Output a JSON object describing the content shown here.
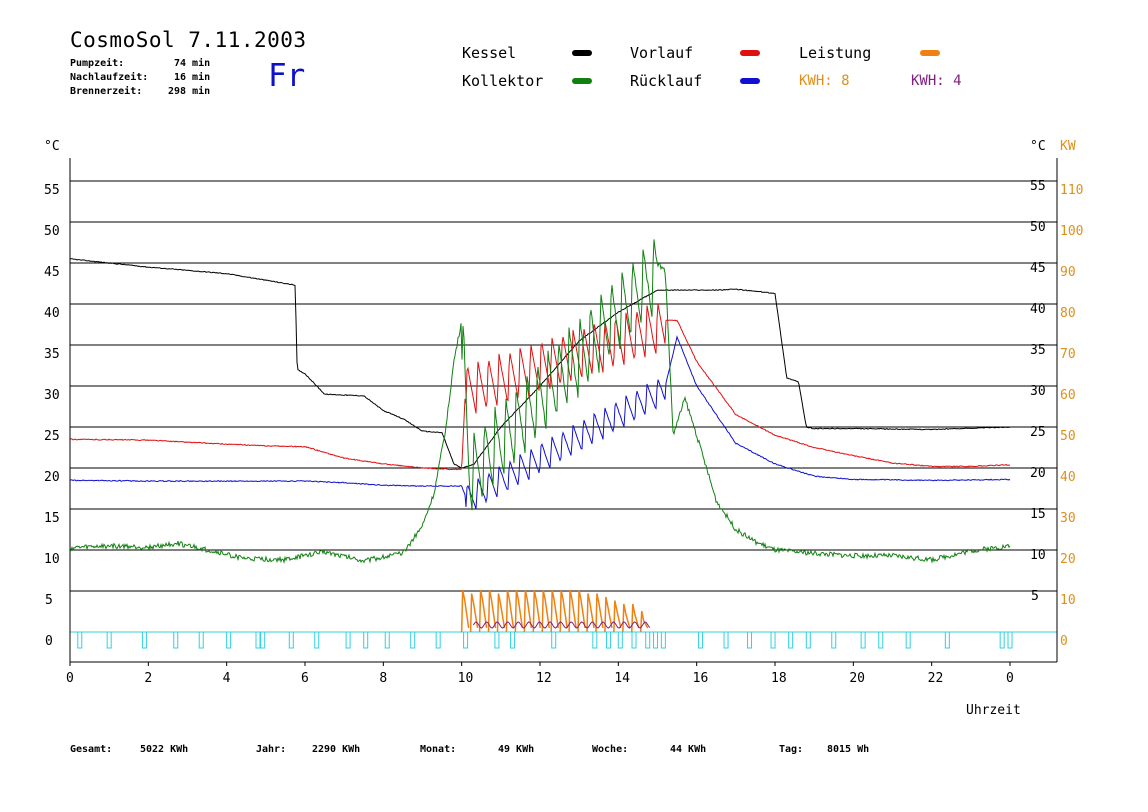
{
  "header": {
    "title": "CosmoSol 7.11.2003",
    "weekday": "Fr",
    "stats": [
      {
        "label": "Pumpzeit:",
        "value": "74 min"
      },
      {
        "label": "Nachlaufzeit:",
        "value": "16 min"
      },
      {
        "label": "Brennerzeit:",
        "value": "298 min"
      }
    ]
  },
  "legend": {
    "items": [
      {
        "label": "Kessel",
        "color": "#000000"
      },
      {
        "label": "Kollektor",
        "color": "#108010"
      },
      {
        "label": "Vorlauf",
        "color": "#e01010"
      },
      {
        "label": "Rücklauf",
        "color": "#1010d0"
      },
      {
        "label": "Leistung",
        "color": "#f08010"
      }
    ],
    "kwh_values": [
      {
        "text": "KWH: 8",
        "color": "#e0901a"
      },
      {
        "text": "KWH: 4",
        "color": "#802080"
      }
    ]
  },
  "footer": {
    "items": [
      {
        "label": "Gesamt:",
        "value": "5022 KWh"
      },
      {
        "label": "Jahr:",
        "value": "2290 KWh"
      },
      {
        "label": "Monat:",
        "value": "49 KWh"
      },
      {
        "label": "Woche:",
        "value": "44 KWh"
      },
      {
        "label": "Tag:",
        "value": "8015 Wh"
      }
    ]
  },
  "chart_data": {
    "type": "line",
    "xlabel": "Uhrzeit",
    "ylabel_left": "°C",
    "ylabel_right_unit": "°C",
    "ylabel_right2": "KW",
    "x_ticks": [
      "0",
      "2",
      "4",
      "6",
      "8",
      "10",
      "12",
      "14",
      "16",
      "18",
      "20",
      "22",
      "0"
    ],
    "y_ticks_left": [
      0,
      5,
      10,
      15,
      20,
      25,
      30,
      35,
      40,
      45,
      50,
      55
    ],
    "y_ticks_right": [
      5,
      10,
      15,
      20,
      25,
      30,
      35,
      40,
      45,
      50,
      55
    ],
    "y_ticks_right2": [
      0,
      10,
      20,
      30,
      40,
      50,
      60,
      70,
      80,
      90,
      100,
      110
    ],
    "xlim": [
      0,
      24
    ],
    "ylim": [
      0,
      55
    ],
    "grid": true,
    "series": [
      {
        "name": "Kessel",
        "color": "#000000",
        "x": [
          0,
          2,
          4,
          5.5,
          5.75,
          5.8,
          6.0,
          6.5,
          7.5,
          8.0,
          8.5,
          9.0,
          9.5,
          9.8,
          10.0,
          10.3,
          11,
          12,
          13,
          14,
          15,
          16,
          16.5,
          17,
          18,
          18.3,
          18.6,
          18.8,
          19,
          20,
          22,
          24
        ],
        "y": [
          45.5,
          44.5,
          43.7,
          42.5,
          42.3,
          32,
          31.5,
          29,
          28.8,
          27,
          26,
          24.5,
          24.3,
          20.5,
          20,
          20.4,
          25,
          30,
          35.5,
          39,
          41.7,
          41.7,
          41.7,
          41.8,
          41.3,
          31,
          30.5,
          25,
          24.8,
          24.8,
          24.7,
          25
        ]
      },
      {
        "name": "Vorlauf",
        "color": "#e01010",
        "x": [
          0,
          2,
          4,
          5,
          6,
          7,
          8,
          9,
          10,
          10.1,
          15.2,
          15.5,
          16,
          17,
          18,
          19,
          20,
          21,
          22,
          23,
          24
        ],
        "y": [
          23.5,
          23.4,
          22.9,
          22.7,
          22.6,
          21.2,
          20.5,
          20,
          19.8,
          30,
          38,
          38,
          33,
          26.5,
          24,
          22.5,
          21.5,
          20.6,
          20.2,
          20.2,
          20.4
        ]
      },
      {
        "name": "Rücklauf",
        "color": "#1010d0",
        "x": [
          0,
          2,
          4,
          6,
          7,
          8,
          9,
          10,
          10.1,
          15.2,
          15.5,
          16,
          17,
          18,
          19,
          20,
          22,
          24
        ],
        "y": [
          18.5,
          18.4,
          18.4,
          18.4,
          18.2,
          17.9,
          17.8,
          17.8,
          16.5,
          30,
          36,
          30,
          23,
          20.5,
          19,
          18.6,
          18.5,
          18.6
        ]
      },
      {
        "name": "Kollektor",
        "color": "#108010",
        "x": [
          0,
          1,
          2,
          2.75,
          3.5,
          4.5,
          5.5,
          6.5,
          7.5,
          8.5,
          9,
          9.3,
          9.6,
          9.8,
          10,
          10.2,
          15.0,
          15.2,
          15.4,
          15.7,
          16,
          16.5,
          17,
          17.5,
          18,
          19,
          20,
          21,
          22,
          23,
          24
        ],
        "y": [
          10.2,
          10.5,
          10.3,
          10.8,
          10,
          8.9,
          8.8,
          9.8,
          8.7,
          9.6,
          13,
          17,
          25,
          33,
          38,
          20,
          45,
          44,
          24,
          28.5,
          24,
          16,
          12.5,
          11,
          10,
          9.6,
          9.3,
          9.3,
          8.8,
          9.9,
          10.5
        ]
      },
      {
        "name": "Leistung",
        "color": "#f08010",
        "pulse_peaks_kw": [
          12,
          11,
          12,
          12,
          11,
          12,
          12,
          12,
          12,
          12,
          12,
          12,
          12,
          12,
          11,
          11,
          10,
          9,
          8,
          8,
          6
        ],
        "x_range": [
          10.0,
          15.3
        ]
      }
    ],
    "pump_markers_x": [
      0.25,
      1.0,
      1.9,
      2.7,
      3.35,
      4.05,
      4.8,
      4.92,
      5.65,
      6.3,
      7.1,
      7.55,
      8.1,
      8.75,
      9.4,
      10.1,
      10.9,
      11.3,
      12.35,
      13.4,
      13.75,
      14.05,
      14.4,
      14.75,
      14.95,
      15.15,
      16.1,
      16.75,
      17.35,
      17.95,
      18.4,
      18.85,
      19.5,
      20.25,
      20.7,
      21.4,
      22.4,
      23.8,
      24.0
    ]
  }
}
